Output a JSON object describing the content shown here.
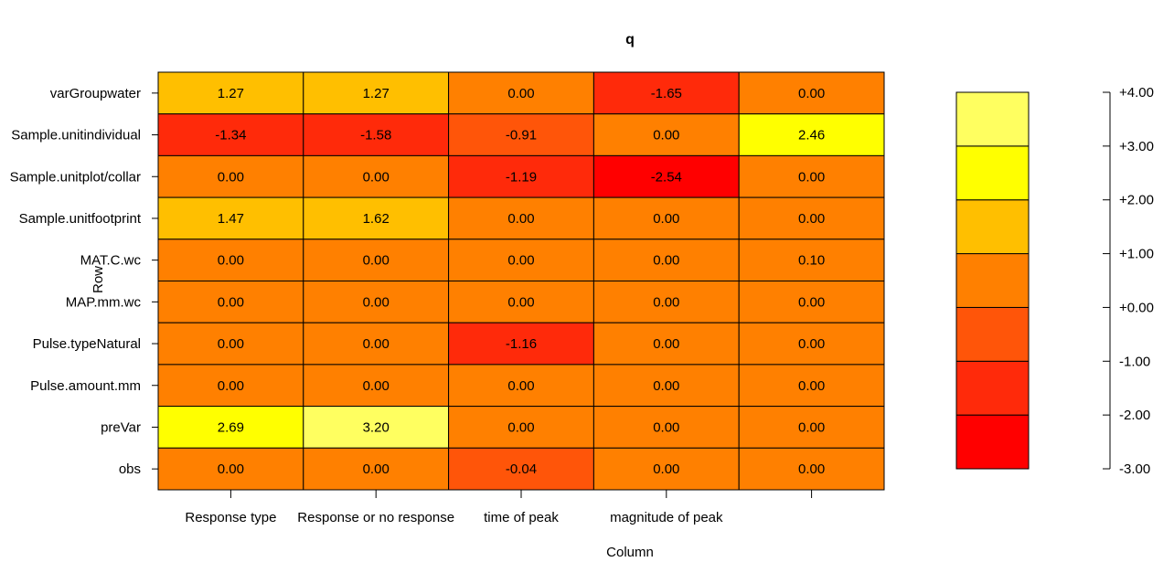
{
  "chart_data": {
    "type": "heatmap",
    "title": "q",
    "xlabel": "Column",
    "ylabel": "Row",
    "columns": [
      "Response type",
      "Response or no response",
      "time of peak",
      "magnitude of peak",
      ""
    ],
    "rows": [
      "varGroupwater",
      "Sample.unitindividual",
      "Sample.unitplot/collar",
      "Sample.unitfootprint",
      "MAT.C.wc",
      "MAP.mm.wc",
      "Pulse.typeNatural",
      "Pulse.amount.mm",
      "preVar",
      "obs"
    ],
    "values": [
      [
        "1.27",
        "1.27",
        "0.00",
        "-1.65",
        "0.00"
      ],
      [
        "-1.34",
        "-1.58",
        "-0.91",
        "0.00",
        "2.46"
      ],
      [
        "0.00",
        "0.00",
        "-1.19",
        "-2.54",
        "0.00"
      ],
      [
        "1.47",
        "1.62",
        "0.00",
        "0.00",
        "0.00"
      ],
      [
        "0.00",
        "0.00",
        "0.00",
        "0.00",
        "0.10"
      ],
      [
        "0.00",
        "0.00",
        "0.00",
        "0.00",
        "0.00"
      ],
      [
        "0.00",
        "0.00",
        "-1.16",
        "0.00",
        "0.00"
      ],
      [
        "0.00",
        "0.00",
        "0.00",
        "0.00",
        "0.00"
      ],
      [
        "2.69",
        "3.20",
        "0.00",
        "0.00",
        "0.00"
      ],
      [
        "0.00",
        "0.00",
        "-0.04",
        "0.00",
        "0.00"
      ]
    ],
    "color_scale": {
      "breaks": [
        -3,
        -2,
        -1,
        0,
        1,
        2,
        3,
        4
      ],
      "colors": [
        "#ff0000",
        "#ff2a0a",
        "#ff5509",
        "#ff8000",
        "#ffbf00",
        "#ffff00",
        "#ffff60"
      ],
      "tick_labels": [
        "-3.00",
        "-2.00",
        "-1.00",
        "+0.00",
        "+1.00",
        "+2.00",
        "+3.00",
        "+4.00"
      ]
    },
    "legend_placement": "right"
  }
}
